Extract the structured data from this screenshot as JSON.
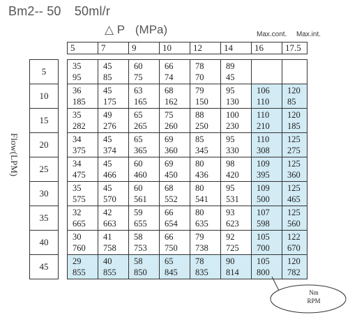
{
  "title": {
    "model": "Bm2-- 50",
    "displacement": "50ml/r"
  },
  "pressure_axis": {
    "symbol": "△ P",
    "unit": "(MPa)"
  },
  "max_labels": {
    "cont": "Max.cont.",
    "int": "Max.int."
  },
  "pressures": [
    "5",
    "7",
    "9",
    "10",
    "12",
    "14",
    "16",
    "17.5"
  ],
  "flow_axis_label": "Flow(LPM)",
  "flows": [
    "5",
    "10",
    "15",
    "20",
    "25",
    "30",
    "35",
    "40",
    "45"
  ],
  "rows": [
    [
      [
        "35",
        "95"
      ],
      [
        "45",
        "85"
      ],
      [
        "60",
        "75"
      ],
      [
        "66",
        "74"
      ],
      [
        "78",
        "70"
      ],
      [
        "89",
        "45"
      ],
      [
        "",
        ""
      ],
      [
        "",
        ""
      ]
    ],
    [
      [
        "36",
        "185"
      ],
      [
        "45",
        "175"
      ],
      [
        "63",
        "165"
      ],
      [
        "68",
        "162"
      ],
      [
        "79",
        "150"
      ],
      [
        "95",
        "130"
      ],
      [
        "106",
        "110"
      ],
      [
        "120",
        "85"
      ]
    ],
    [
      [
        "35",
        "282"
      ],
      [
        "49",
        "276"
      ],
      [
        "65",
        "265"
      ],
      [
        "75",
        "260"
      ],
      [
        "88",
        "250"
      ],
      [
        "100",
        "230"
      ],
      [
        "110",
        "210"
      ],
      [
        "120",
        "185"
      ]
    ],
    [
      [
        "34",
        "375"
      ],
      [
        "45",
        "374"
      ],
      [
        "65",
        "365"
      ],
      [
        "69",
        "360"
      ],
      [
        "85",
        "345"
      ],
      [
        "95",
        "330"
      ],
      [
        "110",
        "308"
      ],
      [
        "125",
        "275"
      ]
    ],
    [
      [
        "34",
        "475"
      ],
      [
        "45",
        "466"
      ],
      [
        "60",
        "460"
      ],
      [
        "69",
        "450"
      ],
      [
        "80",
        "436"
      ],
      [
        "98",
        "420"
      ],
      [
        "109",
        "395"
      ],
      [
        "125",
        "360"
      ]
    ],
    [
      [
        "35",
        "575"
      ],
      [
        "45",
        "570"
      ],
      [
        "60",
        "561"
      ],
      [
        "68",
        "552"
      ],
      [
        "80",
        "541"
      ],
      [
        "95",
        "531"
      ],
      [
        "109",
        "500"
      ],
      [
        "125",
        "465"
      ]
    ],
    [
      [
        "32",
        "665"
      ],
      [
        "42",
        "663"
      ],
      [
        "59",
        "655"
      ],
      [
        "66",
        "654"
      ],
      [
        "80",
        "635"
      ],
      [
        "93",
        "623"
      ],
      [
        "107",
        "598"
      ],
      [
        "125",
        "560"
      ]
    ],
    [
      [
        "30",
        "760"
      ],
      [
        "41",
        "758"
      ],
      [
        "58",
        "753"
      ],
      [
        "66",
        "750"
      ],
      [
        "79",
        "738"
      ],
      [
        "92",
        "725"
      ],
      [
        "105",
        "700"
      ],
      [
        "122",
        "670"
      ]
    ],
    [
      [
        "29",
        "855"
      ],
      [
        "40",
        "855"
      ],
      [
        "58",
        "850"
      ],
      [
        "65",
        "845"
      ],
      [
        "78",
        "835"
      ],
      [
        "90",
        "814"
      ],
      [
        "105",
        "800"
      ],
      [
        "120",
        "782"
      ]
    ]
  ],
  "legend": {
    "top": "Nm",
    "bottom": "RPM"
  },
  "colors": {
    "highlight": "#d2ebf4"
  }
}
